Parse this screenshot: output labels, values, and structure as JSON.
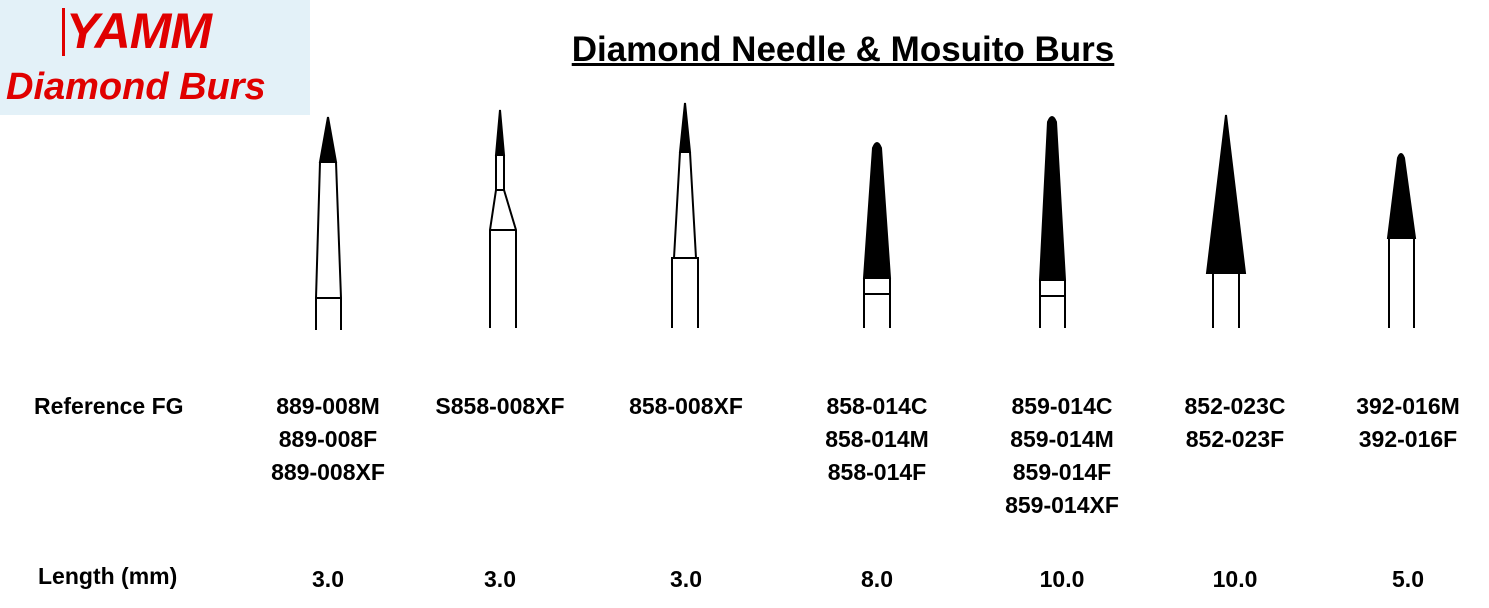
{
  "header": {
    "logo_top": "YAMM",
    "logo_bottom": "Diamond Burs",
    "title": "Diamond Needle & Mosuito Burs"
  },
  "table": {
    "reference_label": "Reference FG",
    "length_label": "Length (mm)",
    "columns": [
      {
        "references": [
          "889-008M",
          "889-008F",
          "889-008XF"
        ],
        "length": "3.0"
      },
      {
        "references": [
          "S858-008XF"
        ],
        "length": "3.0"
      },
      {
        "references": [
          "858-008XF"
        ],
        "length": "3.0"
      },
      {
        "references": [
          "858-014C",
          "858-014M",
          "858-014F"
        ],
        "length": "8.0"
      },
      {
        "references": [
          "859-014C",
          "859-014M",
          "859-014F",
          "859-014XF"
        ],
        "length": "10.0"
      },
      {
        "references": [
          "852-023C",
          "852-023F"
        ],
        "length": "10.0"
      },
      {
        "references": [
          "392-016M",
          "392-016F"
        ],
        "length": "5.0"
      }
    ]
  }
}
